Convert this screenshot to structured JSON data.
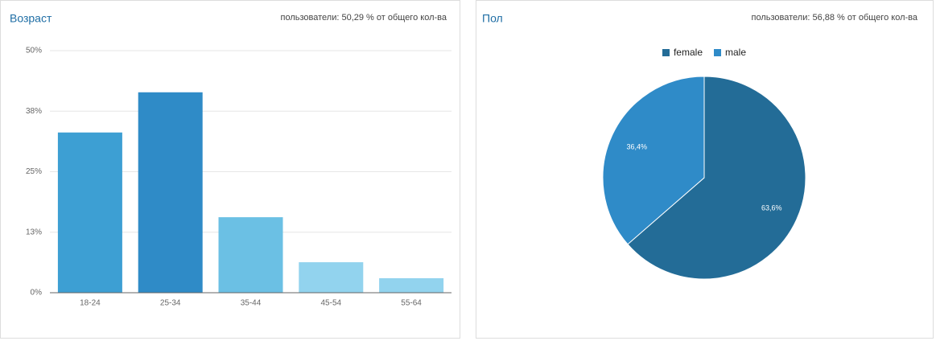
{
  "chart_data": [
    {
      "type": "bar",
      "title": "Возраст",
      "subtitle": "пользователи: 50,29 % от общего кол-ва",
      "categories": [
        "18-24",
        "25-34",
        "35-44",
        "45-54",
        "55-64"
      ],
      "values": [
        33.1,
        41.4,
        15.6,
        6.3,
        3.0
      ],
      "colors": [
        "#3d9fd3",
        "#2f8bc7",
        "#6bc0e4",
        "#92d3ee",
        "#92d3ee"
      ],
      "ylim": [
        0,
        50
      ],
      "yticks": [
        {
          "value": 0,
          "label": "0%"
        },
        {
          "value": 12.5,
          "label": "13%"
        },
        {
          "value": 25,
          "label": "25%"
        },
        {
          "value": 37.5,
          "label": "38%"
        },
        {
          "value": 50,
          "label": "50%"
        }
      ],
      "grid": true
    },
    {
      "type": "pie",
      "title": "Пол",
      "subtitle": "пользователи: 56,88 % от общего кол-ва",
      "categories": [
        "female",
        "male"
      ],
      "values": [
        63.6,
        36.4
      ],
      "value_labels": [
        "63,6%",
        "36,4%"
      ],
      "colors": [
        "#236c97",
        "#2f8bc8"
      ],
      "legend": "top"
    }
  ]
}
